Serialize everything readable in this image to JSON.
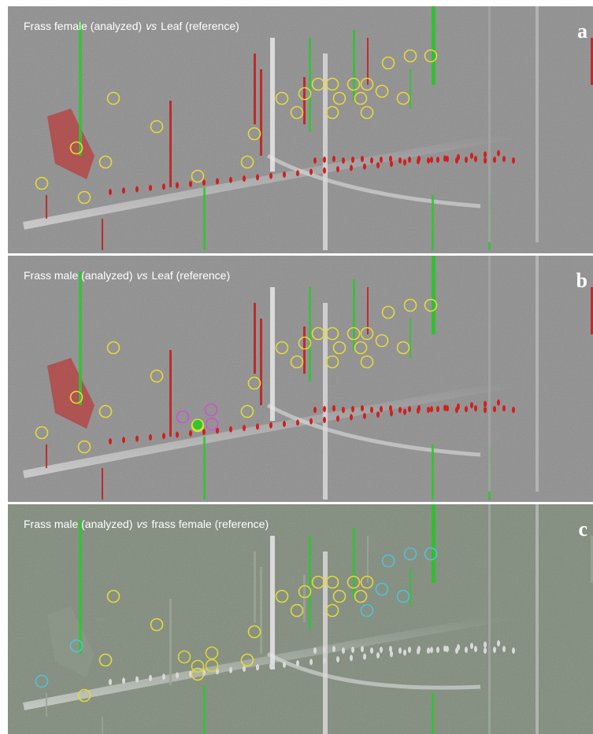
{
  "figure": {
    "panels": [
      {
        "letter": "a",
        "title_start": "Frass female (analyzed)",
        "title_connector": "vs",
        "title_end": "Leaf (reference)"
      },
      {
        "letter": "b",
        "title_start": "Frass male (analyzed)",
        "title_connector": "vs",
        "title_end": "Leaf (reference)"
      },
      {
        "letter": "c",
        "title_start": "Frass male (analyzed)",
        "title_connector": "vs",
        "title_end": "frass female (reference)"
      }
    ]
  }
}
